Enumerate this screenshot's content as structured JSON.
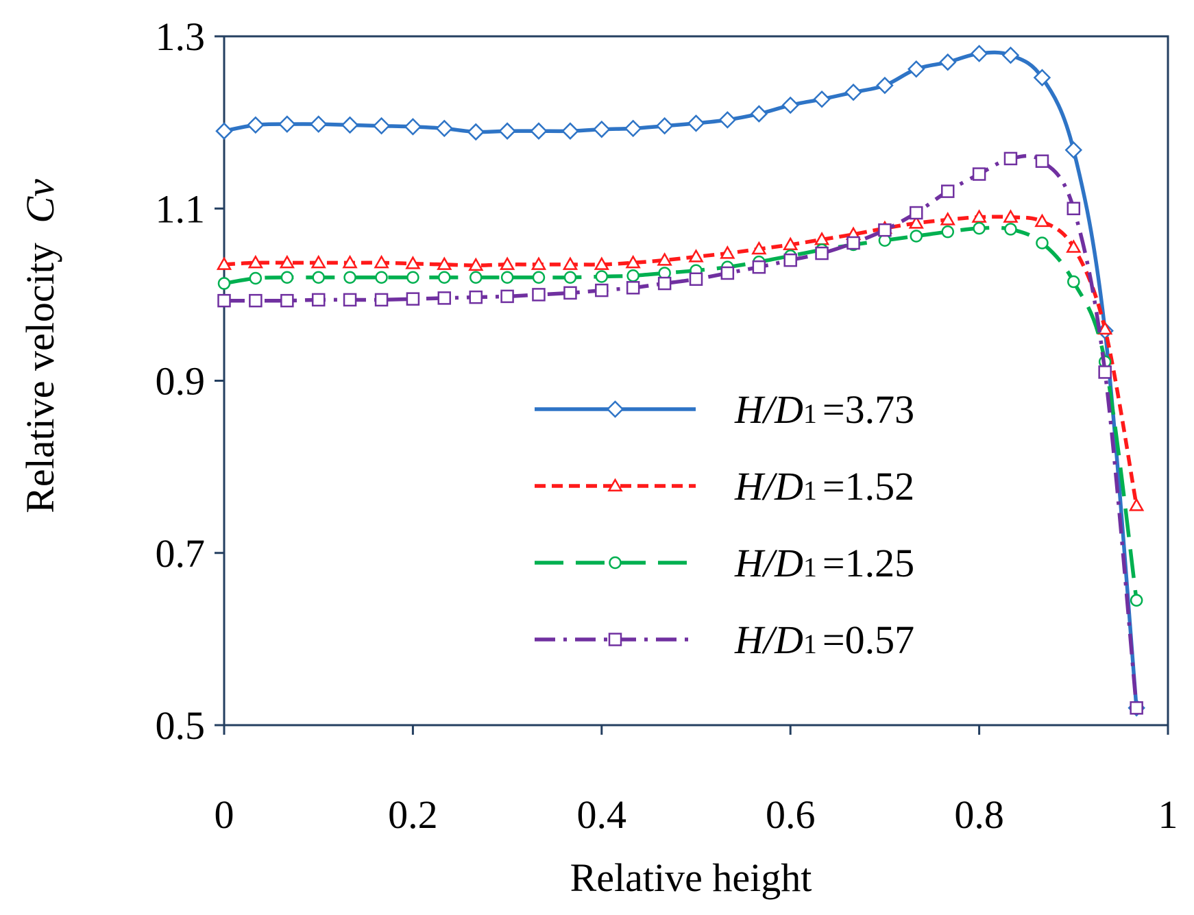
{
  "chart_data": {
    "type": "line",
    "title": "",
    "xlabel": "Relative  height",
    "ylabel": "Relative  velocity",
    "ylabel_symbol": "Cv",
    "xlim": [
      0,
      1
    ],
    "ylim": [
      0.5,
      1.3
    ],
    "x_ticks": [
      "0",
      "0.2",
      "0.4",
      "0.6",
      "0.8",
      "1"
    ],
    "y_ticks": [
      "0.5",
      "0.7",
      "0.9",
      "1.1",
      "1.3"
    ],
    "grid": false,
    "legend_position": "center-right",
    "x": [
      0,
      0.0333,
      0.0667,
      0.1,
      0.1333,
      0.1667,
      0.2,
      0.2333,
      0.2667,
      0.3,
      0.3333,
      0.3667,
      0.4,
      0.4333,
      0.4667,
      0.5,
      0.5333,
      0.5667,
      0.6,
      0.6333,
      0.6667,
      0.7,
      0.7333,
      0.7667,
      0.8,
      0.8333,
      0.8667,
      0.9,
      0.9333,
      0.9667,
      1.0
    ],
    "series": [
      {
        "name": "H/D1 =3.73",
        "legend_var": "H/D",
        "legend_sub": "1",
        "legend_value": "=3.73",
        "color": "#2E74C6",
        "marker": "diamond",
        "dash": "solid",
        "values": [
          1.19,
          1.197,
          1.198,
          1.198,
          1.197,
          1.196,
          1.195,
          1.193,
          1.189,
          1.19,
          1.19,
          1.19,
          1.192,
          1.193,
          1.196,
          1.199,
          1.203,
          1.21,
          1.22,
          1.227,
          1.235,
          1.243,
          1.262,
          1.27,
          1.28,
          1.278,
          1.252,
          1.168,
          0.958,
          0.52,
          null
        ]
      },
      {
        "name": "H/D1 =1.52",
        "legend_var": "H/D",
        "legend_sub": "1",
        "legend_value": "=1.52",
        "color": "#FF1A1A",
        "marker": "triangle",
        "dash": "dashed",
        "values": [
          1.035,
          1.037,
          1.037,
          1.037,
          1.037,
          1.037,
          1.036,
          1.035,
          1.034,
          1.035,
          1.035,
          1.035,
          1.035,
          1.037,
          1.04,
          1.044,
          1.048,
          1.053,
          1.058,
          1.064,
          1.07,
          1.077,
          1.083,
          1.087,
          1.09,
          1.09,
          1.085,
          1.055,
          0.96,
          0.755,
          null
        ]
      },
      {
        "name": "H/D1 =1.25",
        "legend_var": "H/D",
        "legend_sub": "1",
        "legend_value": "=1.25",
        "color": "#00B050",
        "marker": "circle",
        "dash": "longdash",
        "values": [
          1.013,
          1.019,
          1.02,
          1.02,
          1.02,
          1.02,
          1.02,
          1.02,
          1.02,
          1.02,
          1.02,
          1.02,
          1.021,
          1.022,
          1.025,
          1.028,
          1.032,
          1.038,
          1.045,
          1.052,
          1.058,
          1.063,
          1.068,
          1.073,
          1.077,
          1.076,
          1.06,
          1.015,
          0.922,
          0.645,
          null
        ]
      },
      {
        "name": "H/D1 =0.57",
        "legend_var": "H/D",
        "legend_sub": "1",
        "legend_value": "=0.57",
        "color": "#7030A0",
        "marker": "square",
        "dash": "dashdot",
        "values": [
          0.993,
          0.993,
          0.993,
          0.994,
          0.994,
          0.994,
          0.995,
          0.996,
          0.997,
          0.998,
          1.0,
          1.002,
          1.005,
          1.008,
          1.013,
          1.018,
          1.025,
          1.032,
          1.04,
          1.048,
          1.06,
          1.075,
          1.095,
          1.12,
          1.14,
          1.158,
          1.155,
          1.1,
          0.91,
          0.52,
          null
        ]
      }
    ]
  }
}
